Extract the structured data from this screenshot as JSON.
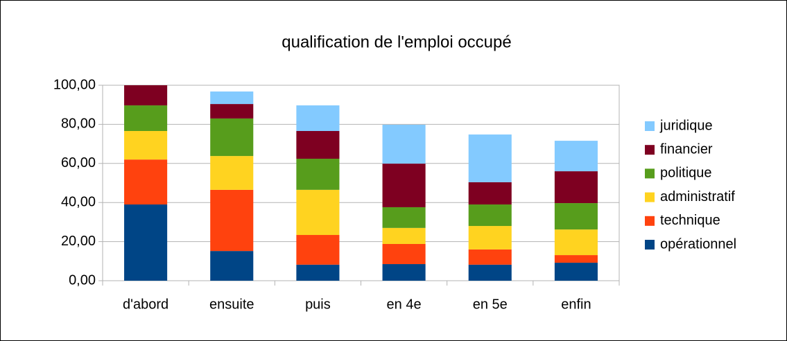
{
  "chart_data": {
    "type": "bar",
    "stacked": true,
    "title": "qualification de l'emploi occupé",
    "categories": [
      "d'abord",
      "ensuite",
      "puis",
      "en 4e",
      "en 5e",
      "enfin"
    ],
    "series": [
      {
        "name": "opérationnel",
        "color": "#004586",
        "values": [
          39,
          15.2,
          8.2,
          8.5,
          8.2,
          9.2
        ]
      },
      {
        "name": "technique",
        "color": "#ff420e",
        "values": [
          23,
          31.3,
          15.2,
          10.3,
          7.8,
          3.9
        ]
      },
      {
        "name": "administratif",
        "color": "#ffd320",
        "values": [
          14.6,
          17.3,
          23.1,
          8.2,
          12,
          13.1
        ]
      },
      {
        "name": "politique",
        "color": "#579d1c",
        "values": [
          13.1,
          19.2,
          15.9,
          10.6,
          11,
          13.5
        ]
      },
      {
        "name": "financier",
        "color": "#7e0021",
        "values": [
          10.3,
          7.4,
          14.2,
          22.3,
          11.4,
          16.3
        ]
      },
      {
        "name": "juridique",
        "color": "#83caff",
        "values": [
          0,
          6.4,
          13.1,
          19.9,
          24.4,
          15.6
        ]
      }
    ],
    "ylim": [
      0,
      100
    ],
    "yticks": [
      {
        "value": 0,
        "label": "0,00"
      },
      {
        "value": 20,
        "label": "20,00"
      },
      {
        "value": 40,
        "label": "40,00"
      },
      {
        "value": 60,
        "label": "60,00"
      },
      {
        "value": 80,
        "label": "80,00"
      },
      {
        "value": 100,
        "label": "100,00"
      }
    ],
    "grid": true,
    "legend": "right"
  }
}
